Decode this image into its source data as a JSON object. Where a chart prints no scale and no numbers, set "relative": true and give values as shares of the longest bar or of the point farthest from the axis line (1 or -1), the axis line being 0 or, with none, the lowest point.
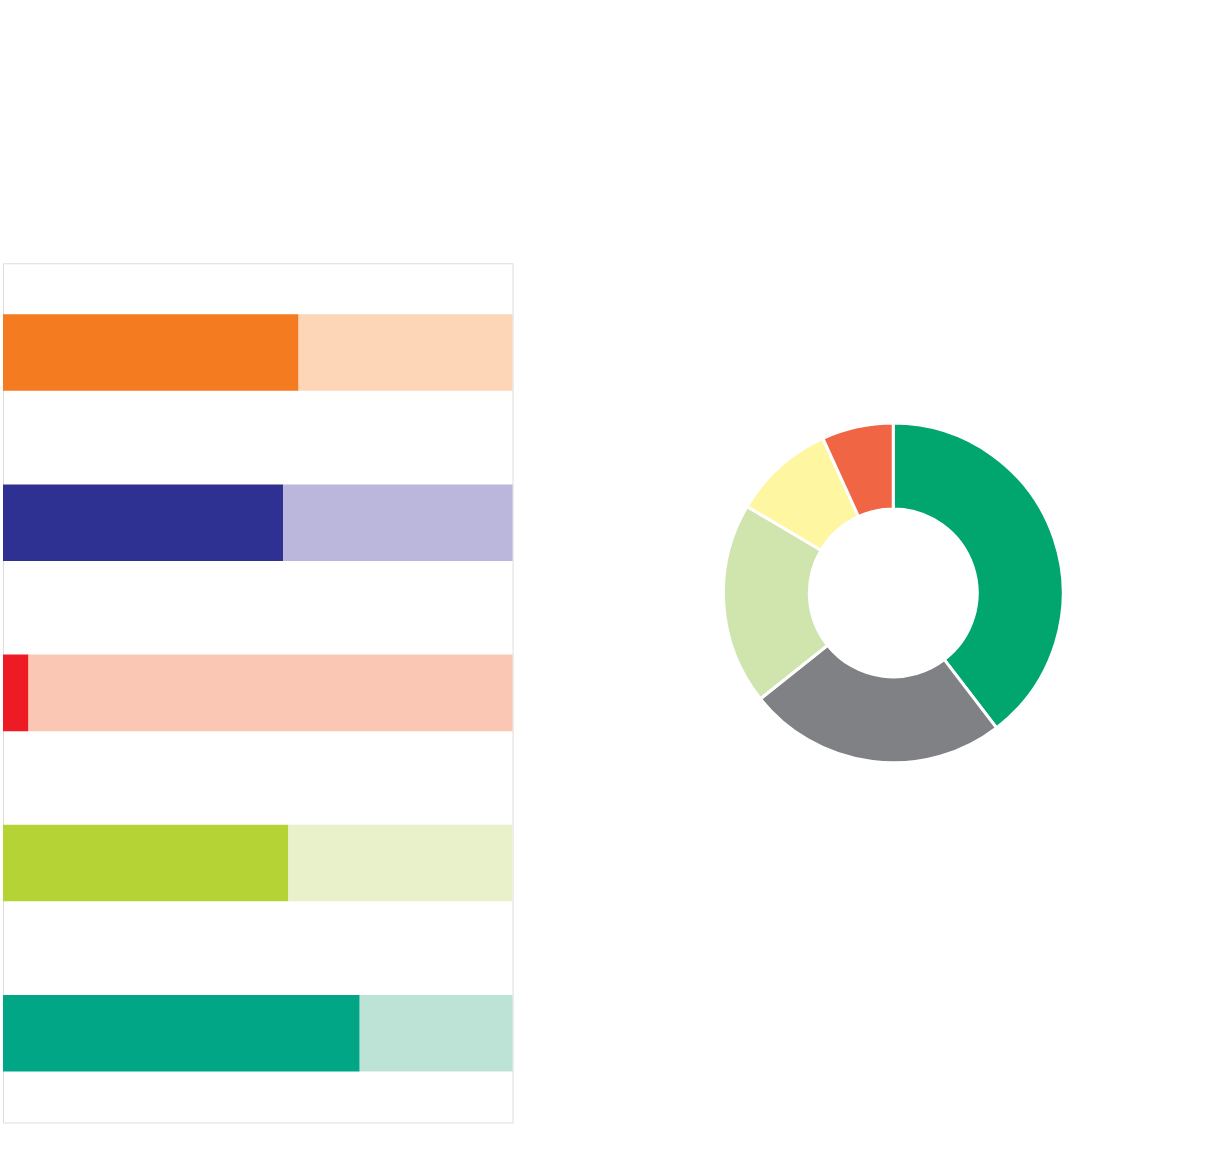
{
  "chart_data": [
    {
      "type": "bar",
      "orientation": "horizontal",
      "stacked": true,
      "relative": true,
      "categories": [
        null,
        null,
        null,
        null,
        null
      ],
      "series": [
        {
          "colors": [
            "#f47b20",
            "#2e3192",
            "#ed1c24",
            "#b5d334",
            "#00a685"
          ],
          "values": [
            0.58,
            0.55,
            0.05,
            0.56,
            0.7
          ]
        },
        {
          "colors": [
            "#fdd5b7",
            "#bbb7dc",
            "#fac7b4",
            "#e9f1cb",
            "#bde3d6"
          ],
          "values": [
            0.42,
            0.45,
            0.95,
            0.44,
            0.3
          ]
        }
      ]
    },
    {
      "type": "donut",
      "categories": [
        null,
        null,
        null,
        null,
        null
      ],
      "values": [
        39.6,
        24.7,
        19.2,
        9.7,
        6.8
      ],
      "colors": [
        "#00a66e",
        "#808184",
        "#d0e4ad",
        "#fff6a2",
        "#f06543"
      ]
    }
  ]
}
